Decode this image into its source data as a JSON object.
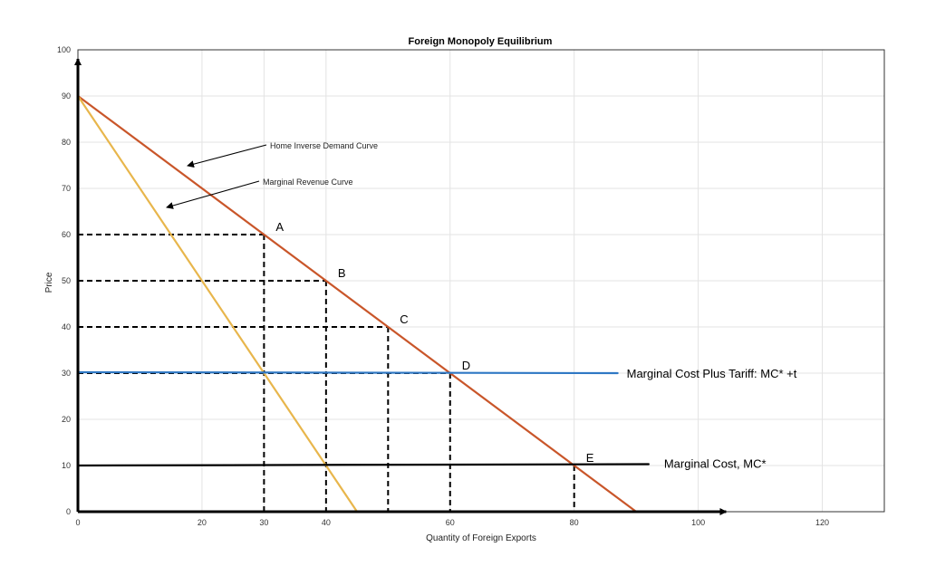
{
  "chart_data": {
    "type": "line",
    "title": "Foreign Monopoly Equilibrium",
    "xlabel": "Quantity of Foreign Exports",
    "ylabel": "Price",
    "xlim": [
      0,
      130
    ],
    "ylim": [
      0,
      100
    ],
    "x_ticks": [
      0,
      20,
      30,
      40,
      60,
      80,
      100,
      120
    ],
    "y_ticks": [
      0,
      10,
      20,
      30,
      40,
      50,
      60,
      70,
      80,
      90,
      100
    ],
    "grid": true,
    "series": [
      {
        "name": "Home Inverse Demand Curve",
        "x": [
          0,
          90
        ],
        "y": [
          90,
          0
        ],
        "color": "#c9562a"
      },
      {
        "name": "Marginal Revenue Curve",
        "x": [
          0,
          45
        ],
        "y": [
          90,
          0
        ],
        "color": "#e8b64c"
      },
      {
        "name": "Marginal Cost Plus Tariff:  MC* +t",
        "x": [
          0,
          87
        ],
        "y": [
          30.2,
          30
        ],
        "color": "#2f78c4"
      },
      {
        "name": "Marginal Cost, MC*",
        "x": [
          0,
          92
        ],
        "y": [
          10,
          10.3
        ],
        "color": "#000000"
      }
    ],
    "points": [
      {
        "label": "A",
        "x": 30,
        "y": 60
      },
      {
        "label": "B",
        "x": 40,
        "y": 50
      },
      {
        "label": "C",
        "x": 50,
        "y": 40
      },
      {
        "label": "D",
        "x": 60,
        "y": 30
      },
      {
        "label": "E",
        "x": 80,
        "y": 10
      }
    ],
    "annotations": [
      {
        "text": "Home Inverse Demand Curve"
      },
      {
        "text": "Marginal Revenue Curve"
      }
    ]
  }
}
